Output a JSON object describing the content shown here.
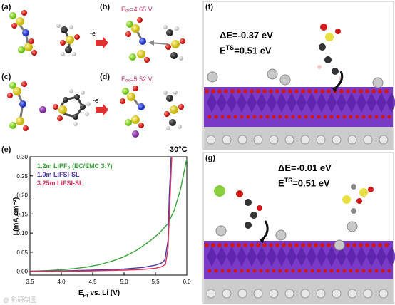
{
  "panels": {
    "a": {
      "label": "(a)"
    },
    "b": {
      "label": "(b)",
      "eox": "Eₒₓ=4.65 V"
    },
    "c": {
      "label": "(c)"
    },
    "d": {
      "label": "(d)",
      "eox": "Eₒₓ=5.52 V"
    },
    "e": {
      "label": "(e)"
    },
    "f": {
      "label": "(f)",
      "delta_e": "ΔE=-0.37 eV",
      "ets_main": "E",
      "ets_sup": "TS",
      "ets_val": "=0.51 eV"
    },
    "g": {
      "label": "(g)",
      "delta_e": "ΔE=-0.01 eV",
      "ets_main": "E",
      "ets_sup": "TS",
      "ets_val": "=0.51 eV"
    }
  },
  "reaction": {
    "minus_e": "-e"
  },
  "watermark": "@ 科研制图",
  "chart_data": {
    "type": "line",
    "temperature": "30°C",
    "xlabel": "E",
    "xlabel_sub": "Pt",
    "xlabel_rest": " vs. Li (V)",
    "ylabel": "I (mA cm⁻²)",
    "xlim": [
      3.5,
      6.0
    ],
    "ylim": [
      -0.01,
      0.3
    ],
    "xticks": [
      "3.5",
      "4.0",
      "4.5",
      "5.0",
      "5.5",
      "6.0"
    ],
    "yticks": [
      "0.00",
      "0.05",
      "0.10",
      "0.15",
      "0.20",
      "0.25",
      "0.30"
    ],
    "series": [
      {
        "name": "1.2m LiPF₆ (EC/EMC 3:7)",
        "color": "#3aa23a",
        "x": [
          3.5,
          3.8,
          4.0,
          4.2,
          4.4,
          4.6,
          4.8,
          5.0,
          5.2,
          5.4,
          5.55,
          5.7,
          5.8,
          5.9,
          6.0
        ],
        "y": [
          0.0,
          0.002,
          0.004,
          0.007,
          0.011,
          0.017,
          0.026,
          0.038,
          0.055,
          0.078,
          0.098,
          0.125,
          0.16,
          0.215,
          0.295
        ]
      },
      {
        "name": "1.0m LiFSI-SL",
        "color": "#4a3aa0",
        "x": [
          3.5,
          4.0,
          4.5,
          5.0,
          5.3,
          5.5,
          5.6,
          5.65,
          5.7,
          5.72,
          5.75
        ],
        "y": [
          0.0,
          0.001,
          0.003,
          0.006,
          0.01,
          0.016,
          0.022,
          0.03,
          0.08,
          0.2,
          0.3
        ]
      },
      {
        "name": "3.25m LiFSI-SL",
        "color": "#d8305a",
        "x": [
          3.5,
          4.0,
          4.5,
          5.0,
          5.3,
          5.5,
          5.6,
          5.66,
          5.7,
          5.73,
          5.76
        ],
        "y": [
          0.0,
          0.0005,
          0.001,
          0.003,
          0.005,
          0.008,
          0.012,
          0.018,
          0.06,
          0.18,
          0.3
        ]
      }
    ]
  }
}
